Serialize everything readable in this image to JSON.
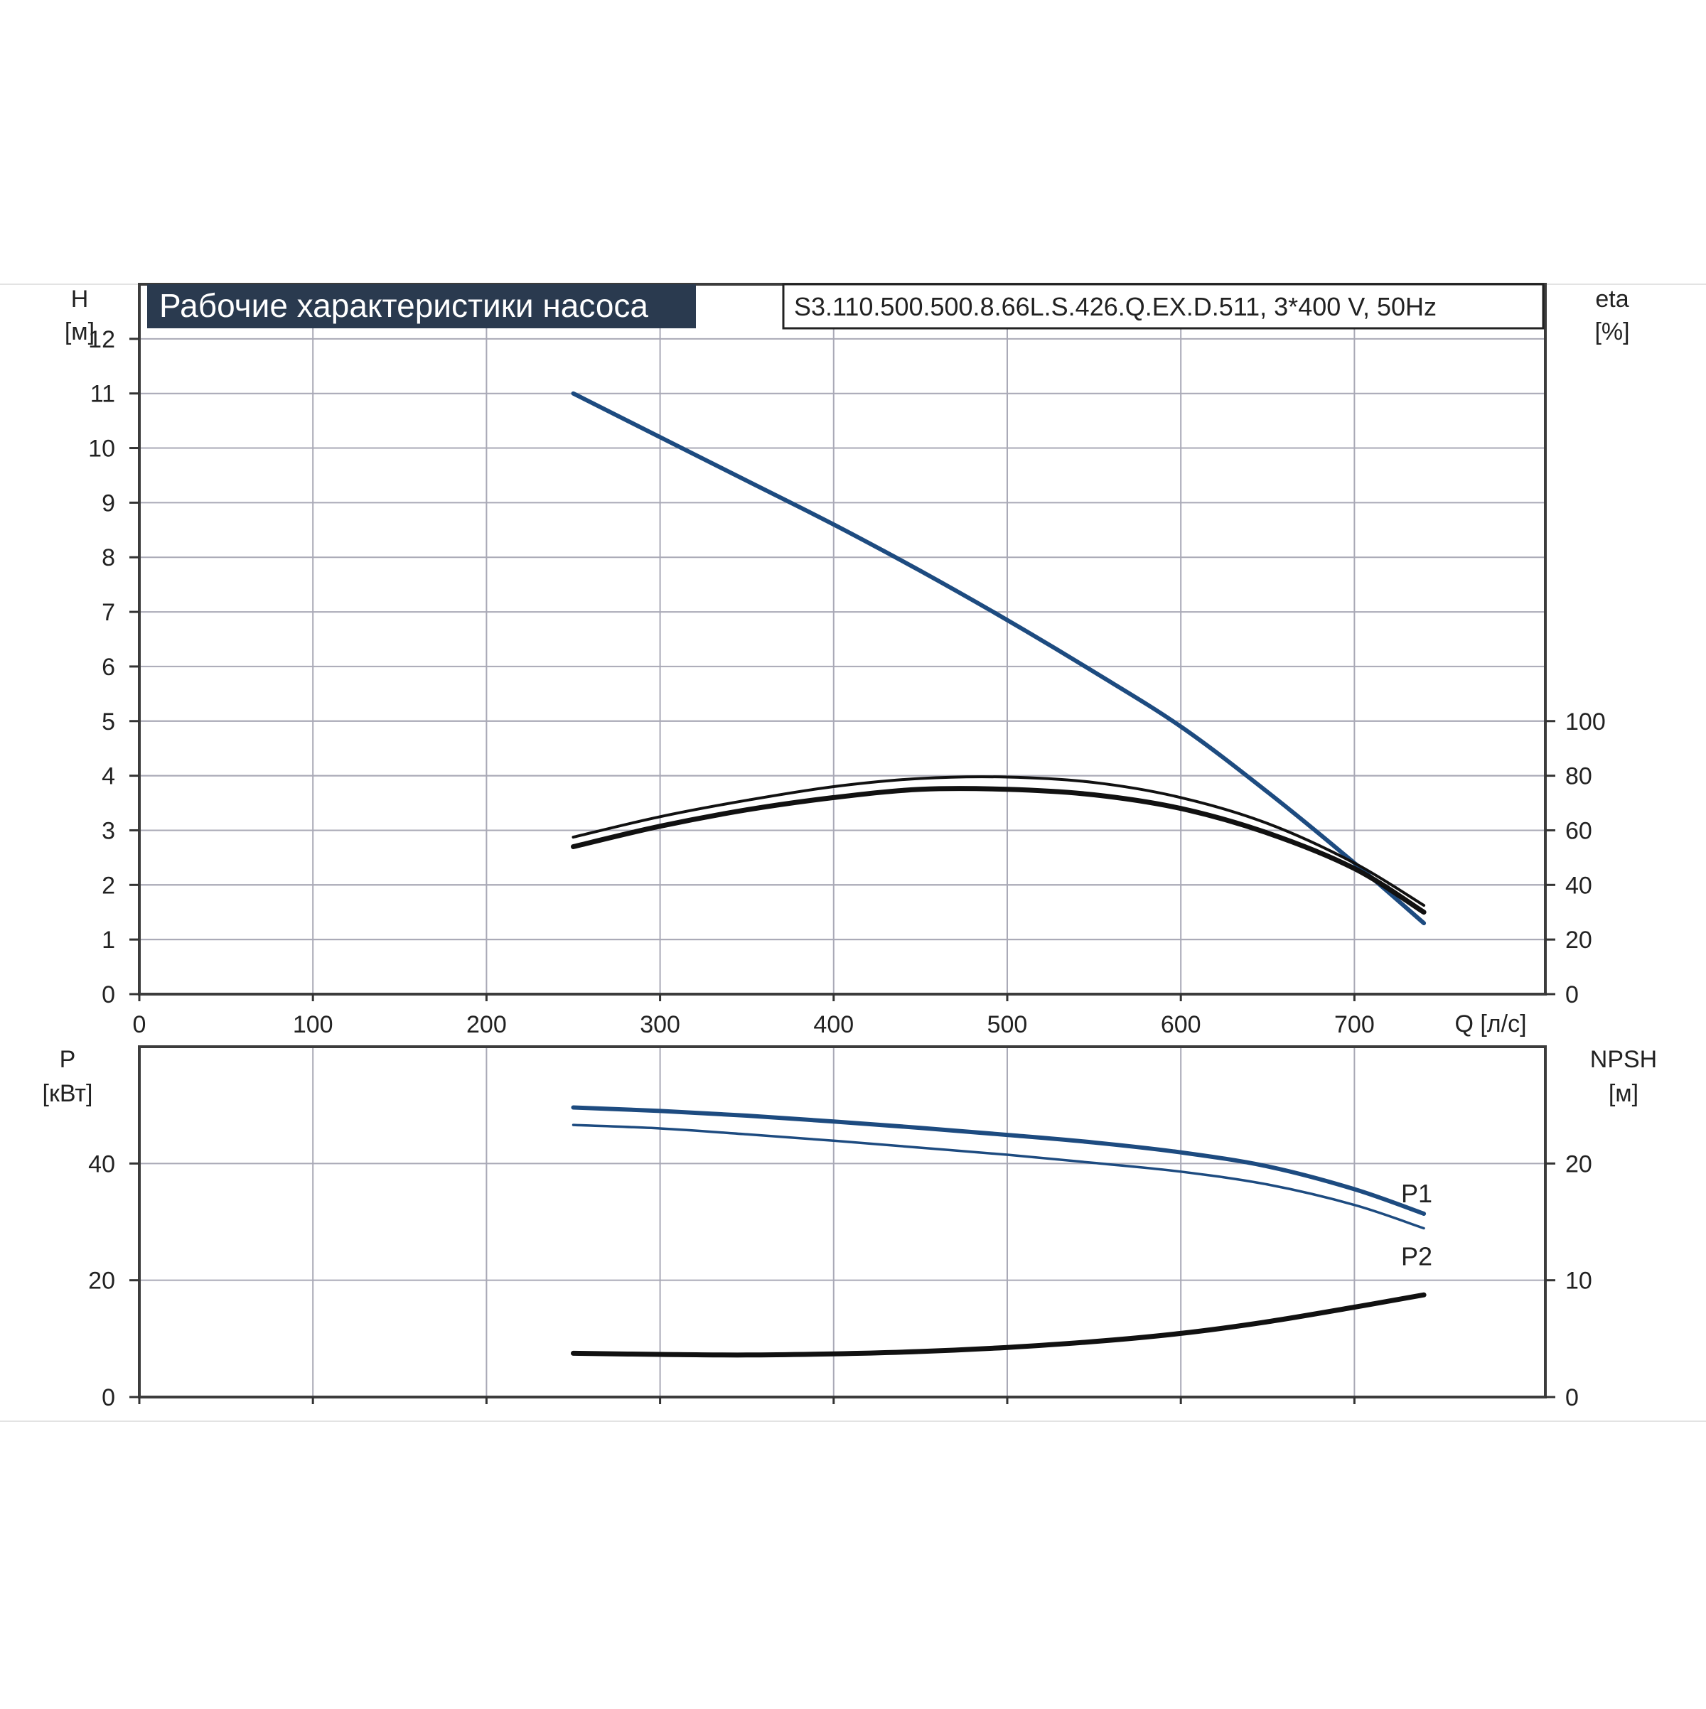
{
  "colors": {
    "head": "#1d4b80",
    "efficiency": "#111111",
    "power": "#1d4b80",
    "npsh": "#111111",
    "title_bg": "#2a3a4f",
    "grid": "#a9a9b6"
  },
  "header": {
    "title": "Рабочие характеристики насоса",
    "model": "S3.110.500.500.8.66L.S.426.Q.EX.D.511, 3*400 V, 50Hz"
  },
  "chart_data": [
    {
      "type": "line",
      "panel": "top",
      "x_axis": {
        "label": "Q [л/с]",
        "range": [
          0,
          810
        ],
        "ticks": [
          0,
          100,
          200,
          300,
          400,
          500,
          600,
          700
        ],
        "tick_labels": [
          "0",
          "100",
          "200",
          "300",
          "400",
          "500",
          "600",
          "700"
        ]
      },
      "y_axis_left": {
        "label_line1": "H",
        "label_line2": "[м]",
        "range": [
          0,
          13
        ],
        "ticks": [
          0,
          1,
          2,
          3,
          4,
          5,
          6,
          7,
          8,
          9,
          10,
          11,
          12
        ],
        "tick_labels": [
          "0",
          "1",
          "2",
          "3",
          "4",
          "5",
          "6",
          "7",
          "8",
          "9",
          "10",
          "11",
          "12"
        ]
      },
      "y_axis_right": {
        "label_line1": "eta",
        "label_line2": "[%]",
        "range": [
          0,
          260
        ],
        "ticks": [
          0,
          20,
          40,
          60,
          80,
          100
        ],
        "tick_labels": [
          "0",
          "20",
          "40",
          "60",
          "80",
          "100"
        ]
      },
      "grid": true,
      "series": [
        {
          "key": "head",
          "axis": "left",
          "x": [
            250,
            300,
            350,
            400,
            450,
            500,
            550,
            600,
            650,
            700,
            740
          ],
          "y": [
            11.0,
            10.2,
            9.4,
            8.6,
            7.75,
            6.85,
            5.9,
            4.9,
            3.7,
            2.4,
            1.3
          ]
        },
        {
          "key": "eta_upper",
          "axis": "right",
          "x": [
            250,
            300,
            350,
            400,
            450,
            500,
            550,
            600,
            650,
            700,
            740
          ],
          "y": [
            57.5,
            65,
            71,
            76,
            79,
            79.5,
            77.5,
            72,
            62.5,
            48,
            32.5
          ]
        },
        {
          "key": "eta_lower",
          "axis": "right",
          "x": [
            250,
            300,
            350,
            400,
            450,
            500,
            550,
            600,
            650,
            700,
            740
          ],
          "y": [
            54,
            61.5,
            67.5,
            72,
            75,
            75,
            73,
            68,
            59,
            46,
            30
          ]
        }
      ]
    },
    {
      "type": "line",
      "panel": "bottom",
      "x_axis": {
        "range": [
          0,
          810
        ],
        "ticks": [
          0,
          100,
          200,
          300,
          400,
          500,
          600,
          700
        ]
      },
      "y_axis_left": {
        "label_line1": "P",
        "label_line2": "[кВт]",
        "range": [
          0,
          60
        ],
        "ticks": [
          0,
          20,
          40
        ],
        "tick_labels": [
          "0",
          "20",
          "40"
        ]
      },
      "y_axis_right": {
        "label_line1": "NPSH",
        "label_line2": "[м]",
        "range": [
          0,
          30
        ],
        "ticks": [
          0,
          10,
          20
        ],
        "tick_labels": [
          "0",
          "10",
          "20"
        ]
      },
      "grid": true,
      "series": [
        {
          "key": "P1",
          "name": "P1",
          "axis": "left",
          "x": [
            250,
            300,
            350,
            400,
            450,
            500,
            550,
            600,
            650,
            700,
            740
          ],
          "y": [
            49.6,
            49.0,
            48.2,
            47.2,
            46.1,
            44.9,
            43.6,
            41.9,
            39.5,
            35.6,
            31.4
          ]
        },
        {
          "key": "P2",
          "name": "P2",
          "axis": "left",
          "x": [
            250,
            300,
            350,
            400,
            450,
            500,
            550,
            600,
            650,
            700,
            740
          ],
          "y": [
            46.6,
            46.0,
            45.0,
            43.9,
            42.7,
            41.5,
            40.1,
            38.6,
            36.4,
            32.9,
            28.9
          ]
        },
        {
          "key": "npsh",
          "axis": "right",
          "x": [
            250,
            300,
            350,
            400,
            450,
            500,
            550,
            600,
            650,
            700,
            740
          ],
          "y": [
            3.75,
            3.65,
            3.6,
            3.7,
            3.9,
            4.25,
            4.75,
            5.45,
            6.45,
            7.7,
            8.75
          ]
        }
      ]
    }
  ]
}
